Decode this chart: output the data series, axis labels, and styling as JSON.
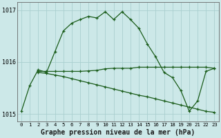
{
  "title": "Graphe pression niveau de la mer (hPa)",
  "background_color": "#cce8e8",
  "line_color": "#1a5c1a",
  "grid_color": "#aacfcf",
  "x_labels": [
    "0",
    "1",
    "2",
    "3",
    "4",
    "5",
    "6",
    "7",
    "8",
    "9",
    "10",
    "11",
    "12",
    "13",
    "14",
    "15",
    "16",
    "17",
    "18",
    "19",
    "20",
    "21",
    "22",
    "23"
  ],
  "series1_x": [
    0,
    1,
    2,
    3,
    4,
    5,
    6,
    7,
    8,
    9,
    10,
    11,
    12,
    13,
    14,
    15,
    16,
    17,
    18,
    19,
    20,
    21,
    22,
    23
  ],
  "series1_y": [
    1015.05,
    1015.55,
    1015.85,
    1015.8,
    1016.2,
    1016.6,
    1016.75,
    1016.82,
    1016.88,
    1016.85,
    1016.97,
    1016.82,
    1016.97,
    1016.82,
    1016.65,
    1016.35,
    1016.1,
    1015.8,
    1015.7,
    1015.45,
    1015.05,
    1015.25,
    1015.82,
    1015.88
  ],
  "series2_x": [
    2,
    3,
    4,
    5,
    6,
    7,
    8,
    9,
    10,
    11,
    12,
    13,
    14,
    15,
    16,
    17,
    18,
    19,
    20,
    21,
    22,
    23
  ],
  "series2_y": [
    1015.82,
    1015.82,
    1015.82,
    1015.82,
    1015.82,
    1015.82,
    1015.83,
    1015.84,
    1015.87,
    1015.88,
    1015.88,
    1015.88,
    1015.9,
    1015.9,
    1015.9,
    1015.9,
    1015.9,
    1015.9,
    1015.9,
    1015.9,
    1015.9,
    1015.88
  ],
  "series3_x": [
    2,
    3,
    4,
    5,
    6,
    7,
    8,
    9,
    10,
    11,
    12,
    13,
    14,
    15,
    16,
    17,
    18,
    19,
    20,
    21,
    22,
    23
  ],
  "series3_y": [
    1015.8,
    1015.78,
    1015.75,
    1015.72,
    1015.68,
    1015.64,
    1015.6,
    1015.56,
    1015.52,
    1015.48,
    1015.44,
    1015.4,
    1015.36,
    1015.33,
    1015.29,
    1015.25,
    1015.21,
    1015.17,
    1015.13,
    1015.09,
    1015.05,
    1015.03
  ],
  "ylim": [
    1014.85,
    1017.15
  ],
  "yticks": [
    1015,
    1016,
    1017
  ],
  "figsize": [
    3.2,
    2.0
  ],
  "dpi": 100
}
